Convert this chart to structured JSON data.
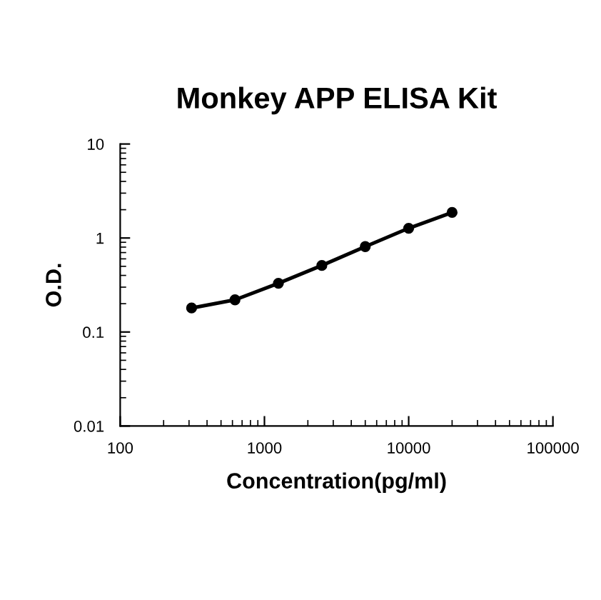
{
  "chart_data": {
    "type": "line",
    "title": "Monkey APP ELISA Kit",
    "xlabel": "Concentration(pg/ml)",
    "ylabel": "O.D.",
    "log": "xy",
    "marker": "circle",
    "line_style": "solid",
    "grid": false,
    "legend": false,
    "x": [
      312.5,
      625,
      1250,
      2500,
      5000,
      10000,
      20000
    ],
    "series": [
      {
        "color": "#000000",
        "values": [
          0.18,
          0.22,
          0.33,
          0.51,
          0.81,
          1.27,
          1.87
        ]
      }
    ],
    "xlim": [
      100,
      100000
    ],
    "xticks": [
      100,
      1000,
      10000,
      100000
    ],
    "ylim": [
      0.01,
      10
    ],
    "yticks": [
      0.01,
      0.1,
      1,
      10
    ]
  }
}
